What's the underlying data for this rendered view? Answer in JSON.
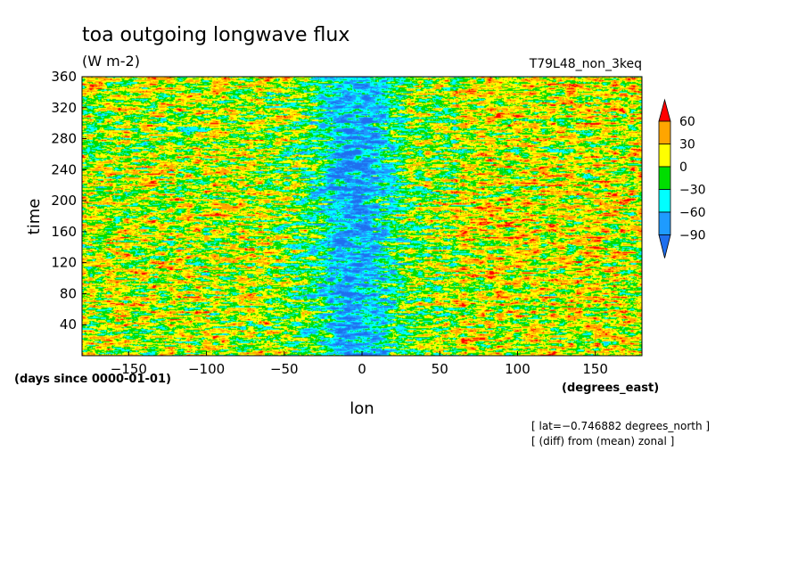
{
  "chart_data": {
    "type": "heatmap",
    "title": "toa outgoing longwave flux",
    "units": "(W m-2)",
    "run_label": "T79L48_non_3keq",
    "xlabel": "lon",
    "x_units": "(degrees_east)",
    "ylabel": "time",
    "y_units": "(days since 0000-01-01)",
    "xlim": [
      -180,
      180
    ],
    "ylim": [
      0,
      360
    ],
    "x_ticks": [
      -150,
      -100,
      -50,
      0,
      50,
      100,
      150
    ],
    "x_tick_labels": [
      "−150",
      "−100",
      "−50",
      "0",
      "50",
      "100",
      "150"
    ],
    "y_ticks": [
      40,
      80,
      120,
      160,
      200,
      240,
      280,
      320,
      360
    ],
    "y_tick_labels": [
      "40",
      "80",
      "120",
      "160",
      "200",
      "240",
      "280",
      "320",
      "360"
    ],
    "notes": [
      "[ lat=−0.746882 degrees_north ]",
      "[ (diff) from (mean) zonal ]"
    ],
    "colorbar": {
      "levels": [
        -90,
        -60,
        -30,
        0,
        30,
        60
      ],
      "labels": [
        "−90",
        "−60",
        "−30",
        "0",
        "30",
        "60"
      ],
      "colors": [
        "#1f6fee",
        "#1e9bff",
        "#00ffff",
        "#00dd00",
        "#ffff00",
        "#ffa500",
        "#ff0000"
      ],
      "extend": "both"
    },
    "pattern": {
      "description": "zonal anomaly field: negative (blue) band near lon 0 (approx -30 to 20), positive (red/orange) streaks elsewhere, strongest near lon 70-180",
      "cool_band_lon": [
        -30,
        20
      ],
      "warm_regions_lon": [
        [
          60,
          180
        ],
        [
          -180,
          -60
        ]
      ]
    }
  }
}
